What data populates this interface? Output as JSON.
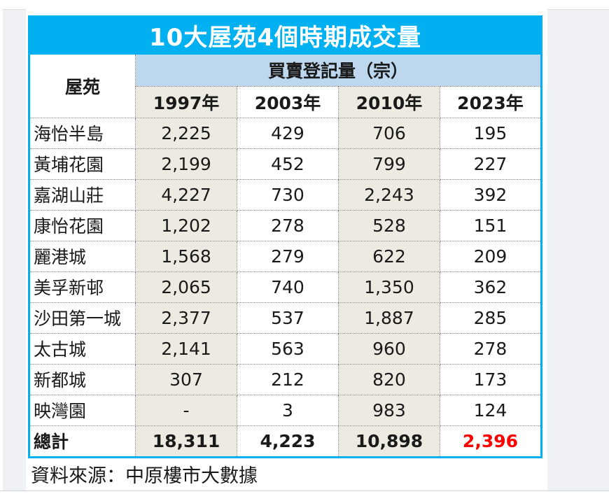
{
  "chart_data": {
    "type": "table",
    "title": "10大屋苑4個時期成交量",
    "row_header": "屋苑",
    "group_header": "買賣登記量（宗）",
    "columns": [
      "1997年",
      "2003年",
      "2010年",
      "2023年"
    ],
    "rows": [
      {
        "estate": "海怡半島",
        "values": [
          "2,225",
          "429",
          "706",
          "195"
        ]
      },
      {
        "estate": "黃埔花園",
        "values": [
          "2,199",
          "452",
          "799",
          "227"
        ]
      },
      {
        "estate": "嘉湖山莊",
        "values": [
          "4,227",
          "730",
          "2,243",
          "392"
        ]
      },
      {
        "estate": "康怡花園",
        "values": [
          "1,202",
          "278",
          "528",
          "151"
        ]
      },
      {
        "estate": "麗港城",
        "values": [
          "1,568",
          "279",
          "622",
          "209"
        ]
      },
      {
        "estate": "美孚新邨",
        "values": [
          "2,065",
          "740",
          "1,350",
          "362"
        ]
      },
      {
        "estate": "沙田第一城",
        "values": [
          "2,377",
          "537",
          "1,887",
          "285"
        ]
      },
      {
        "estate": "太古城",
        "values": [
          "2,141",
          "563",
          "960",
          "278"
        ]
      },
      {
        "estate": "新都城",
        "values": [
          "307",
          "212",
          "820",
          "173"
        ]
      },
      {
        "estate": "映灣園",
        "values": [
          "-",
          "3",
          "983",
          "124"
        ]
      }
    ],
    "total_row": {
      "label": "總計",
      "values": [
        "18,311",
        "4,223",
        "10,898",
        "2,396"
      ],
      "highlighted_value": "2,396"
    },
    "source": "資料來源：中原樓市大數據",
    "layout": {
      "shaded_columns": [
        "1997年",
        "2010年"
      ],
      "legend": "none",
      "grid": "dotted"
    }
  },
  "colors": {
    "title_bg": "#00b0f0",
    "title_text": "#ffffff",
    "group_header_bg": "#bdd7ee",
    "shaded_column_bg": "#edebe1",
    "table_border": "#00b0f0",
    "cell_border_dotted": "#7f7f7f",
    "total_highlight_text": "#ff0000",
    "side_panel_bg": "#eff1f5"
  }
}
